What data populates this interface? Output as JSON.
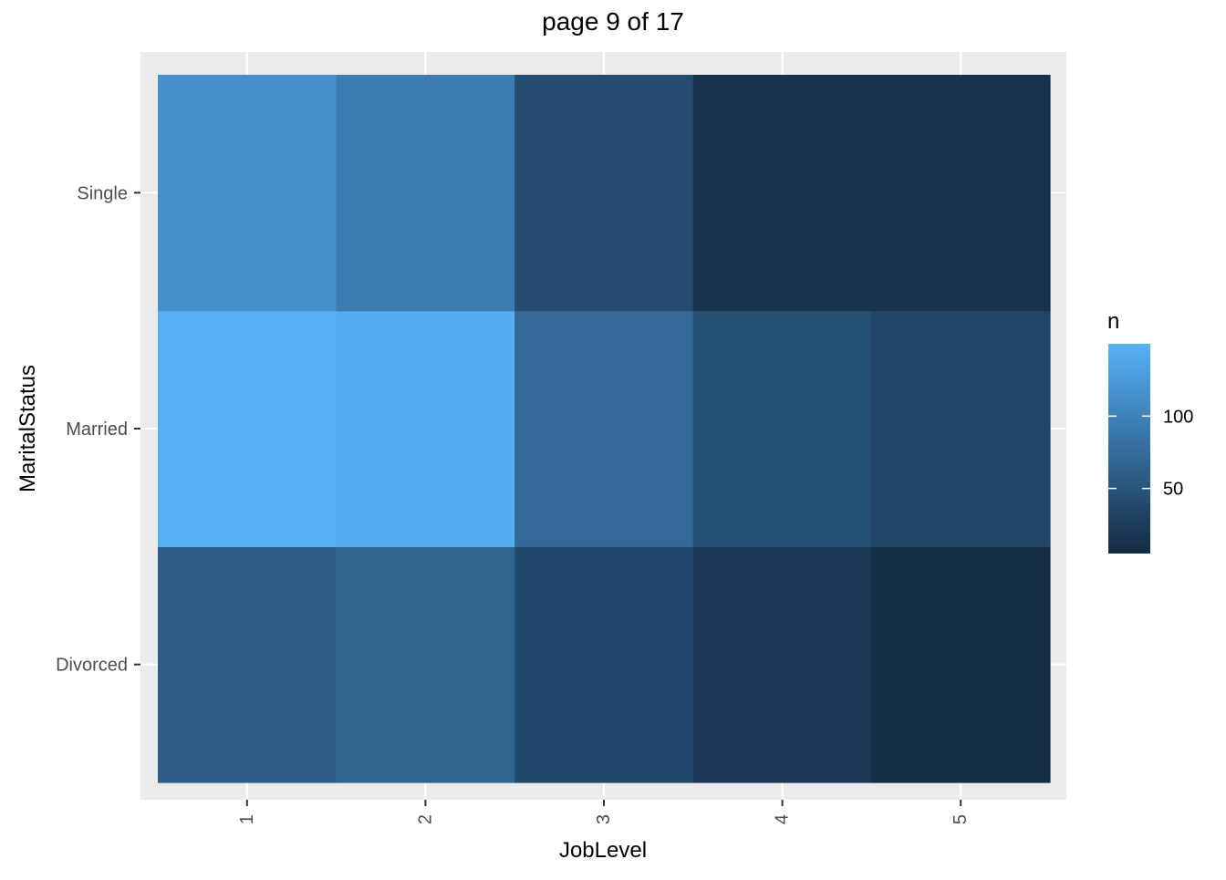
{
  "chart_data": {
    "type": "heatmap",
    "title": "page 9 of 17",
    "xlabel": "JobLevel",
    "ylabel": "MaritalStatus",
    "x_categories": [
      "1",
      "2",
      "3",
      "4",
      "5"
    ],
    "y_categories": [
      "Divorced",
      "Married",
      "Single"
    ],
    "values": [
      [
        60,
        68,
        38,
        18,
        7
      ],
      [
        148,
        145,
        72,
        45,
        33
      ],
      [
        115,
        94,
        42,
        14,
        14
      ]
    ],
    "color_scale": {
      "low": "#132b43",
      "high": "#56b1f7",
      "min": 5,
      "max": 150
    },
    "legend": {
      "title": "n",
      "position": "right",
      "ticks": [
        50,
        100
      ],
      "tick_labels": [
        "50",
        "100"
      ]
    },
    "grid": true,
    "panel_background": "#ebebeb",
    "grid_color": "#ffffff"
  }
}
